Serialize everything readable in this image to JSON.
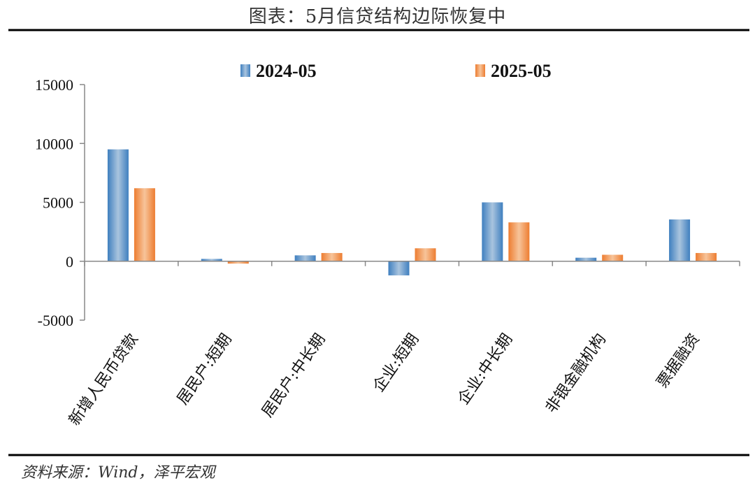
{
  "figure": {
    "title": "图表：5月信贷结构边际恢复中",
    "source": "资料来源：Wind，泽平宏观"
  },
  "colors": {
    "series_2024": "#3f7fbf",
    "series_2024_light": "#a9c4de",
    "series_2025": "#ed7d31",
    "series_2025_light": "#f7c49a",
    "rule": "#000000",
    "axis": "#888888"
  },
  "chart_data": {
    "type": "bar",
    "categories": [
      "新增人民币贷款",
      "居民户:短期",
      "居民户:中长期",
      "企业:短期",
      "企业:中长期",
      "非银金融机构",
      "票据融资"
    ],
    "series": [
      {
        "name": "2024-05",
        "values": [
          9500,
          200,
          500,
          -1200,
          5000,
          300,
          3550
        ]
      },
      {
        "name": "2025-05",
        "values": [
          6200,
          -200,
          700,
          1100,
          3300,
          550,
          700
        ]
      }
    ],
    "ylim": [
      -5000,
      15000
    ],
    "yticks": [
      "15000",
      "10000",
      "5000",
      "0",
      "-5000"
    ],
    "title": "",
    "xlabel": "",
    "ylabel": "",
    "legend_position": "top",
    "grid": false
  }
}
